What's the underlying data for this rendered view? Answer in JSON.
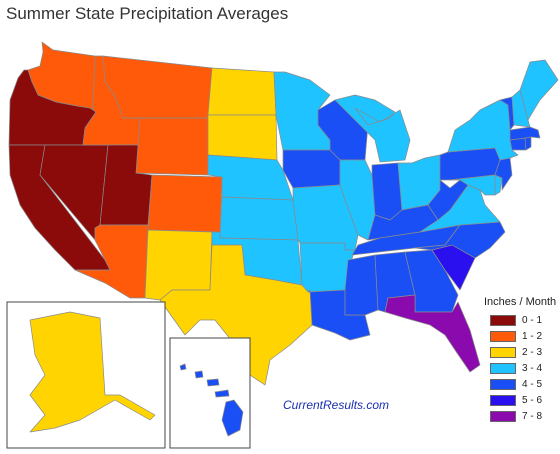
{
  "title": "Summer State Precipitation Averages",
  "source": "CurrentResults.com",
  "legend": {
    "title": "Inches / Month",
    "classes": [
      {
        "label": "0 - 1",
        "color": "#8b0a0a"
      },
      {
        "label": "1 - 2",
        "color": "#ff5a0a"
      },
      {
        "label": "2 - 3",
        "color": "#ffd400"
      },
      {
        "label": "3 - 4",
        "color": "#1ec3ff"
      },
      {
        "label": "4 - 5",
        "color": "#1a4ff5"
      },
      {
        "label": "5 - 6",
        "color": "#2a10ee"
      },
      {
        "label": "7 - 8",
        "color": "#8a0aae"
      }
    ]
  },
  "states": [
    {
      "abbr": "WA",
      "class": 1
    },
    {
      "abbr": "OR",
      "class": 0
    },
    {
      "abbr": "CA",
      "class": 0
    },
    {
      "abbr": "NV",
      "class": 0
    },
    {
      "abbr": "ID",
      "class": 1
    },
    {
      "abbr": "MT",
      "class": 1
    },
    {
      "abbr": "WY",
      "class": 1
    },
    {
      "abbr": "UT",
      "class": 0
    },
    {
      "abbr": "AZ",
      "class": 1
    },
    {
      "abbr": "CO",
      "class": 1
    },
    {
      "abbr": "NM",
      "class": 2
    },
    {
      "abbr": "ND",
      "class": 2
    },
    {
      "abbr": "SD",
      "class": 2
    },
    {
      "abbr": "NE",
      "class": 3
    },
    {
      "abbr": "KS",
      "class": 3
    },
    {
      "abbr": "OK",
      "class": 3
    },
    {
      "abbr": "TX",
      "class": 2
    },
    {
      "abbr": "MN",
      "class": 3
    },
    {
      "abbr": "IA",
      "class": 4
    },
    {
      "abbr": "MO",
      "class": 3
    },
    {
      "abbr": "AR",
      "class": 3
    },
    {
      "abbr": "LA",
      "class": 4
    },
    {
      "abbr": "WI",
      "class": 4
    },
    {
      "abbr": "IL",
      "class": 3
    },
    {
      "abbr": "MI",
      "class": 3
    },
    {
      "abbr": "IN",
      "class": 4
    },
    {
      "abbr": "OH",
      "class": 3
    },
    {
      "abbr": "KY",
      "class": 4
    },
    {
      "abbr": "TN",
      "class": 4
    },
    {
      "abbr": "MS",
      "class": 4
    },
    {
      "abbr": "AL",
      "class": 4
    },
    {
      "abbr": "GA",
      "class": 4
    },
    {
      "abbr": "FL",
      "class": 6
    },
    {
      "abbr": "SC",
      "class": 5
    },
    {
      "abbr": "NC",
      "class": 4
    },
    {
      "abbr": "VA",
      "class": 3
    },
    {
      "abbr": "WV",
      "class": 4
    },
    {
      "abbr": "MD",
      "class": 3
    },
    {
      "abbr": "DE",
      "class": 3
    },
    {
      "abbr": "PA",
      "class": 4
    },
    {
      "abbr": "NJ",
      "class": 4
    },
    {
      "abbr": "NY",
      "class": 3
    },
    {
      "abbr": "CT",
      "class": 4
    },
    {
      "abbr": "RI",
      "class": 4
    },
    {
      "abbr": "MA",
      "class": 4
    },
    {
      "abbr": "VT",
      "class": 4
    },
    {
      "abbr": "NH",
      "class": 3
    },
    {
      "abbr": "ME",
      "class": 3
    },
    {
      "abbr": "AK",
      "class": 2
    },
    {
      "abbr": "HI",
      "class": 4
    }
  ]
}
